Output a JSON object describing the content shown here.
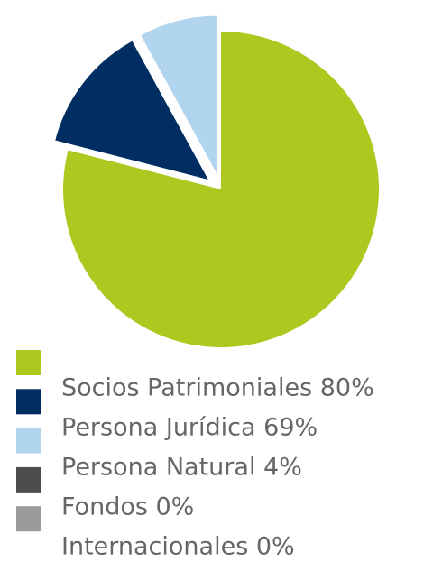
{
  "chart_data": {
    "type": "pie",
    "categories": [
      "Socios Patrimoniales 80%",
      "Persona Jurídica 69%",
      "Persona Natural 4%",
      "Fondos 0%",
      "Internacionales 0%"
    ],
    "values": [
      79,
      13,
      8,
      0,
      0
    ],
    "colors": [
      "#aec820",
      "#002d62",
      "#b1d4ef",
      "#4d4d4d",
      "#9b9b9b"
    ],
    "explode": [
      false,
      true,
      true,
      false,
      false
    ],
    "legend": "bottom-left"
  }
}
